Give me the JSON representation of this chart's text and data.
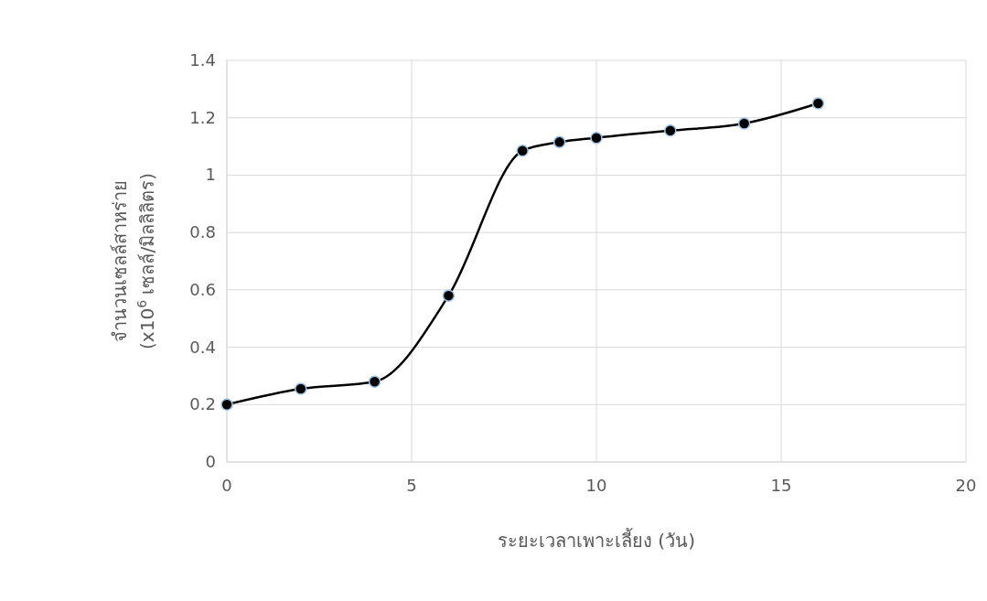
{
  "chart_data": {
    "type": "line",
    "xlabel": "ระยะเวลาเพาะเลี้ยง (วัน)",
    "ylabel": "จำนวนเซลล์สาหร่าย\n(x10$^{6}$ เซลล์/มิลลิลิตร)",
    "x": [
      0,
      2,
      4,
      6,
      8,
      9,
      10,
      12,
      14,
      16
    ],
    "series": [
      {
        "color": "#000000",
        "values": [
          0.2,
          0.255,
          0.28,
          0.58,
          1.085,
          1.115,
          1.13,
          1.155,
          1.18,
          1.25
        ]
      }
    ],
    "xlim": [
      0,
      20
    ],
    "xticks": [
      0,
      5,
      10,
      15,
      20
    ],
    "ylim": [
      0,
      1.4
    ],
    "yticks": [
      0,
      0.2,
      0.4,
      0.6,
      0.8,
      1,
      1.2,
      1.4
    ],
    "grid": true,
    "marker": "circle",
    "line_style": "solid"
  }
}
